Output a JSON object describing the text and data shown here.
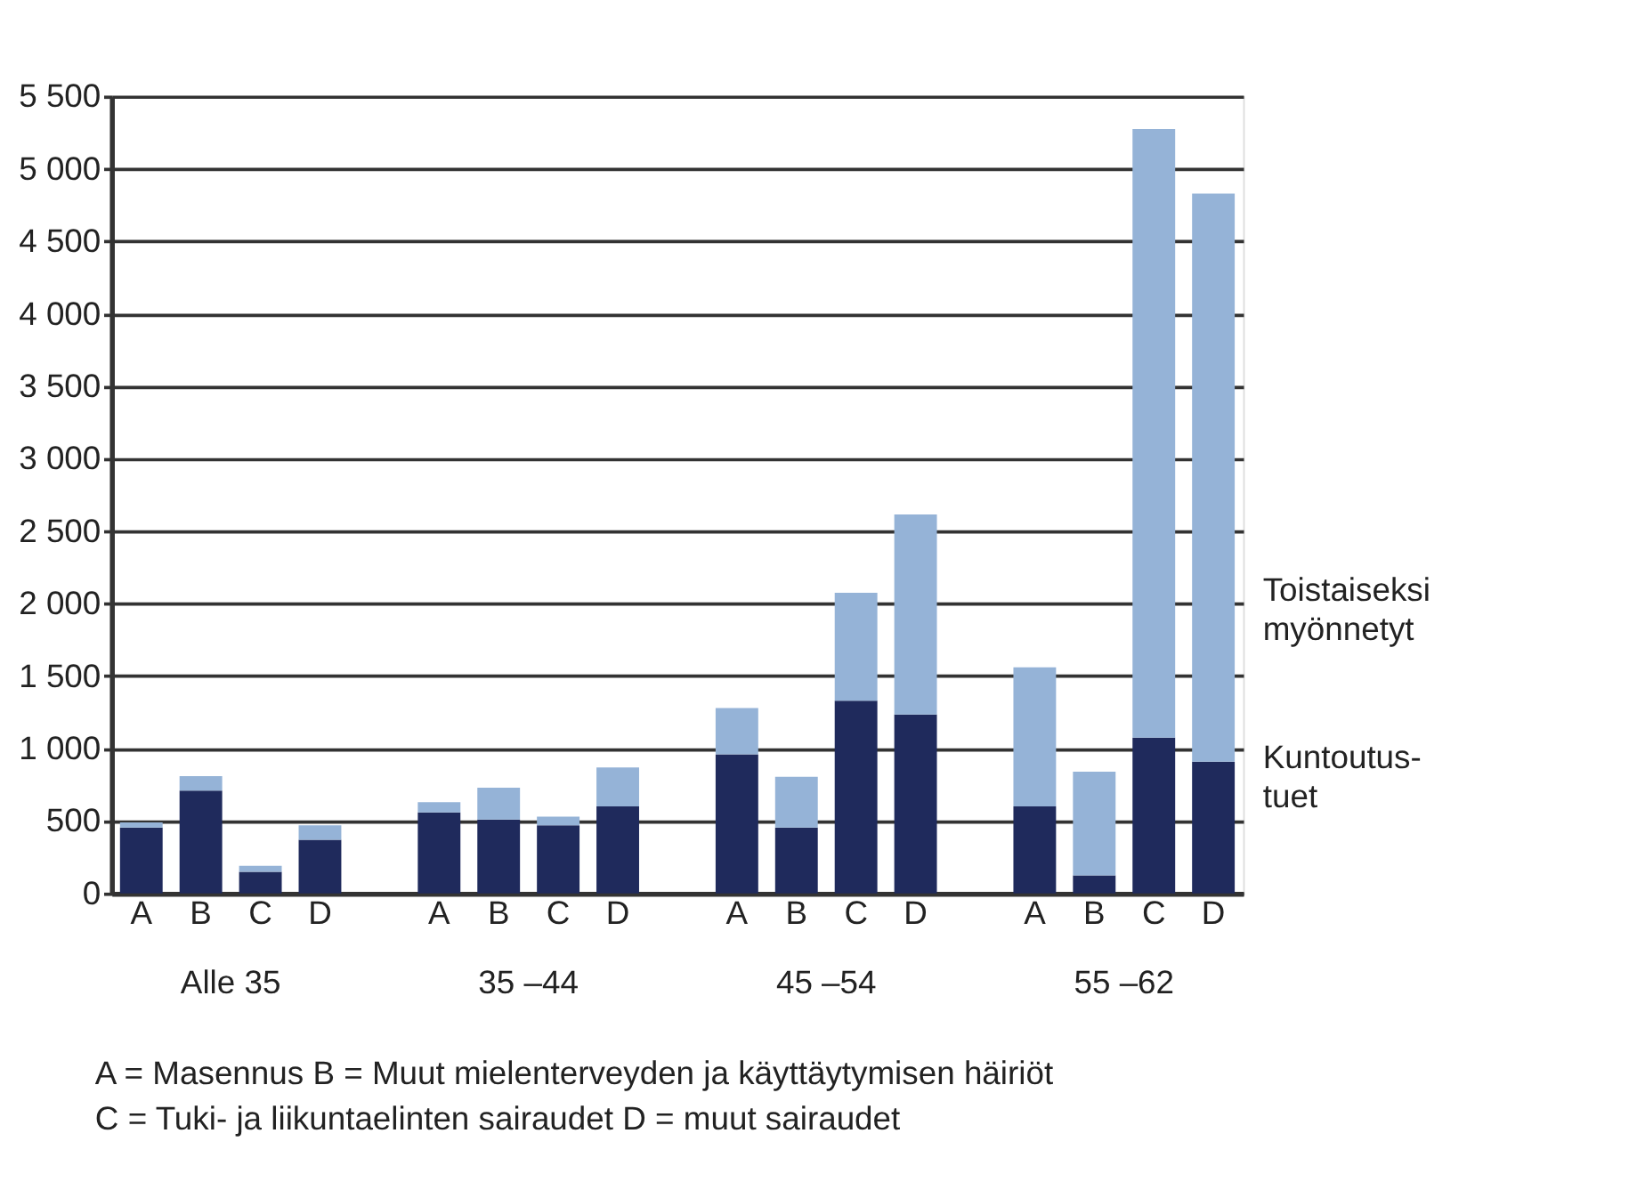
{
  "chart_data": {
    "type": "bar",
    "stacked": true,
    "categories": [
      "A",
      "B",
      "C",
      "D",
      null,
      "A",
      "B",
      "C",
      "D",
      null,
      "A",
      "B",
      "C",
      "D",
      null,
      "A",
      "B",
      "C",
      "D"
    ],
    "series": [
      {
        "name": "Kuntoutus-tuet",
        "color": "#1f2a5c",
        "values": [
          455,
          710,
          150,
          370,
          null,
          560,
          510,
          470,
          600,
          null,
          960,
          455,
          1330,
          1235,
          null,
          600,
          125,
          1075,
          910
        ]
      },
      {
        "name": "Toistaiseksi myönnetyt",
        "color": "#95b3d7",
        "values": [
          35,
          100,
          40,
          100,
          null,
          70,
          220,
          60,
          270,
          null,
          320,
          350,
          745,
          1380,
          null,
          960,
          715,
          4200,
          3920
        ]
      }
    ],
    "ylim": [
      0,
      5500
    ],
    "yticks": [
      0,
      500,
      {
        "value": 1000,
        "label": "1 000"
      },
      {
        "value": 1500,
        "label": "1 500"
      },
      {
        "value": 2000,
        "label": "2 000"
      },
      {
        "value": 2500,
        "label": "2 500"
      },
      {
        "value": 3000,
        "label": "3 000"
      },
      {
        "value": 3500,
        "label": "3 500"
      },
      {
        "value": 4000,
        "label": "4 000"
      },
      {
        "value": 4500,
        "label": "4 500"
      },
      {
        "value": 5000,
        "label": "5 000"
      },
      {
        "value": 5500,
        "label": "5 500"
      }
    ],
    "grid": "y",
    "annotations": [
      "Alle 35",
      "35 –44",
      "45 –54",
      "55 –62",
      "A = Masennus   B = Muut mielenterveyden ja käyttäytymisen häiriöt",
      "C = Tuki- ja liikuntaelinten sairaudet  D = muut sairaudet"
    ]
  }
}
